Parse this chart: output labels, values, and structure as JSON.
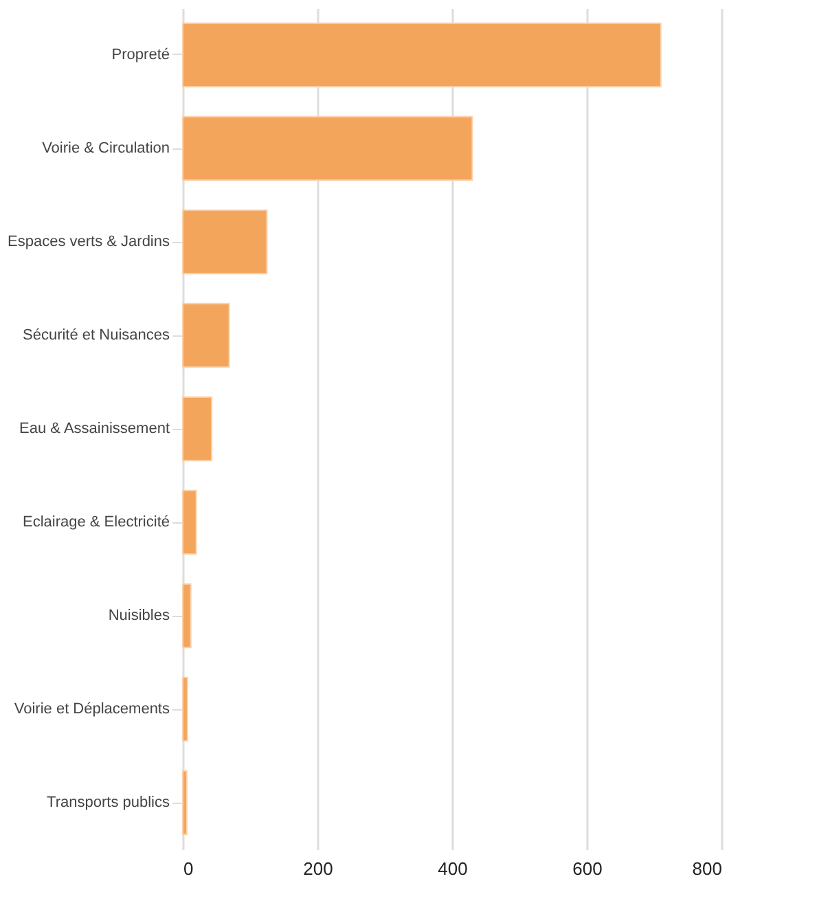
{
  "chart_data": {
    "type": "bar",
    "orientation": "horizontal",
    "categories": [
      "Propreté",
      "Voirie & Circulation",
      "Espaces verts & Jardins",
      "Sécurité et Nuisances",
      "Eau & Assainissement",
      "Eclairage & Electricité",
      "Nuisibles",
      "Voirie et Déplacements",
      "Transports publics"
    ],
    "values": [
      710,
      430,
      125,
      69,
      43,
      20,
      12,
      7,
      6
    ],
    "color": "#f4a55c",
    "xlim": [
      0,
      800
    ],
    "xticks": [
      0,
      200,
      400,
      600,
      800
    ],
    "grid": "x"
  }
}
